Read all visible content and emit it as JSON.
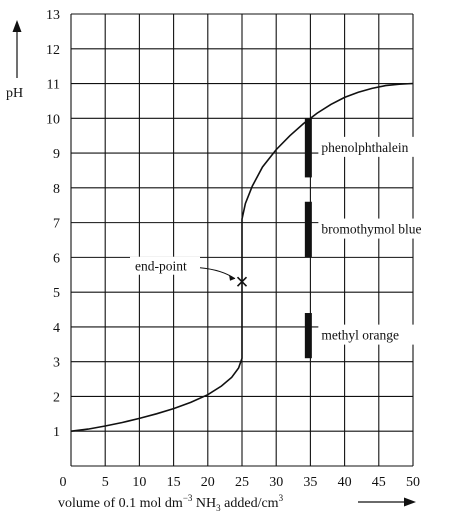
{
  "chart_data": {
    "type": "line",
    "title": "",
    "xlabel": "volume of 0.1 mol dm",
    "xlabel_sup": "−3",
    "xlabel_mid": " NH",
    "xlabel_sub": "3",
    "xlabel_end": " added/cm",
    "xlabel_sup2": "3",
    "ylabel": "pH",
    "xlim": [
      0,
      50
    ],
    "ylim": [
      0,
      13
    ],
    "xticks": [
      0,
      5,
      10,
      15,
      20,
      25,
      30,
      35,
      40,
      45,
      50
    ],
    "yticks": [
      1,
      2,
      3,
      4,
      5,
      6,
      7,
      8,
      9,
      10,
      11,
      12,
      13
    ],
    "grid": true,
    "series": [
      {
        "x": [
          0,
          2.5,
          5,
          7.5,
          10,
          12.5,
          15,
          17.5,
          20,
          22,
          23.5,
          24.5,
          25,
          25,
          25.5,
          26.5,
          28,
          30,
          32,
          34,
          36,
          38,
          40,
          42,
          44,
          46,
          48,
          50
        ],
        "y": [
          1.0,
          1.06,
          1.15,
          1.25,
          1.37,
          1.5,
          1.65,
          1.83,
          2.05,
          2.3,
          2.55,
          2.82,
          3.1,
          7.1,
          7.55,
          8.05,
          8.6,
          9.1,
          9.5,
          9.85,
          10.15,
          10.4,
          10.6,
          10.75,
          10.86,
          10.94,
          10.98,
          11.0
        ]
      }
    ],
    "end_point": {
      "x": 25,
      "y": 5.3,
      "label": "end-point"
    },
    "indicators": [
      {
        "name": "phenolphthalein",
        "x": 34.7,
        "low": 8.3,
        "high": 10.0
      },
      {
        "name": "bromothymol blue",
        "x": 34.7,
        "low": 6.0,
        "high": 7.6
      },
      {
        "name": "methyl orange",
        "x": 34.7,
        "low": 3.1,
        "high": 4.4
      }
    ]
  }
}
